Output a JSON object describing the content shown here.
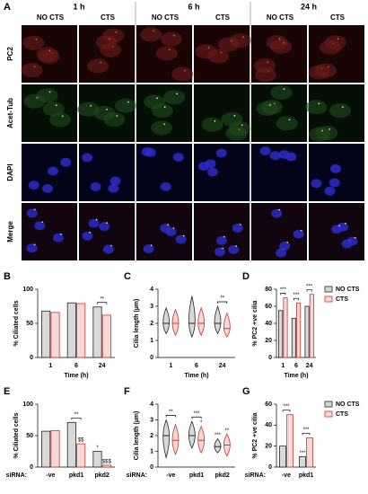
{
  "panel_a": {
    "label": "A",
    "times": [
      "1 h",
      "6 h",
      "24 h"
    ],
    "conditions": [
      "NO CTS",
      "CTS",
      "NO CTS",
      "CTS",
      "NO CTS",
      "CTS"
    ],
    "stains": [
      "PC2",
      "Acet-Tub",
      "DAPI",
      "Merge"
    ]
  },
  "chart_data": [
    {
      "type": "bar",
      "panel": "B",
      "y_label": "% Ciliated cells",
      "x_label": "Time (h)",
      "categories": [
        "1",
        "6",
        "24"
      ],
      "ylim": [
        0,
        100
      ],
      "yticks": [
        0,
        50,
        100
      ],
      "annotations": [
        null,
        null,
        "**"
      ],
      "series": [
        {
          "name": "NO CTS",
          "color": "#222222",
          "fill": "#d9d9d9",
          "values": [
            68,
            80,
            74
          ]
        },
        {
          "name": "CTS",
          "color": "#c0392b",
          "fill": "#f8d7d7",
          "values": [
            66,
            79,
            62
          ]
        }
      ]
    },
    {
      "type": "violin",
      "panel": "C",
      "y_label": "Cilia length (µm)",
      "x_label": "Time (h)",
      "categories": [
        "1",
        "6",
        "24"
      ],
      "ylim": [
        0,
        4
      ],
      "yticks": [
        0,
        1,
        2,
        3,
        4
      ],
      "annotations": [
        null,
        null,
        "**"
      ],
      "series": [
        {
          "name": "NO CTS",
          "color": "#222222",
          "fill": "#d9d9d9",
          "values": [
            2.0,
            2.0,
            2.0
          ],
          "min": [
            1.4,
            1.2,
            1.4
          ],
          "max": [
            2.9,
            3.6,
            3.0
          ]
        },
        {
          "name": "CTS",
          "color": "#c0392b",
          "fill": "#f8d7d7",
          "values": [
            2.0,
            2.0,
            1.7
          ],
          "min": [
            1.3,
            1.3,
            1.2
          ],
          "max": [
            2.8,
            2.9,
            2.6
          ]
        }
      ]
    },
    {
      "type": "bar",
      "panel": "D",
      "y_label": "% PC2 +ve cilia",
      "x_label": "Time (h)",
      "categories": [
        "1",
        "6",
        "24"
      ],
      "ylim": [
        0,
        80
      ],
      "yticks": [
        0,
        20,
        40,
        60,
        80
      ],
      "annotations": [
        "***",
        "***",
        "***"
      ],
      "legend": "right",
      "series": [
        {
          "name": "NO CTS",
          "color": "#222222",
          "fill": "#d9d9d9",
          "values": [
            55,
            46,
            60
          ]
        },
        {
          "name": "CTS",
          "color": "#c0392b",
          "fill": "#f8d7d7",
          "values": [
            70,
            64,
            74
          ]
        }
      ]
    },
    {
      "type": "bar",
      "panel": "E",
      "y_label": "% Ciliated cells",
      "x_prefix": "siRNA:",
      "categories": [
        "-ve",
        "pkd1",
        "pkd2"
      ],
      "ylim": [
        0,
        100
      ],
      "yticks": [
        0,
        50,
        100
      ],
      "annotations": [
        null,
        "**",
        null
      ],
      "series": [
        {
          "name": "NO CTS",
          "color": "#222222",
          "fill": "#d9d9d9",
          "values": [
            57,
            71,
            25
          ],
          "annotations": [
            null,
            null,
            "*"
          ]
        },
        {
          "name": "CTS",
          "color": "#c0392b",
          "fill": "#f8d7d7",
          "values": [
            58,
            37,
            3
          ],
          "annotations": [
            null,
            "$$",
            "$$$"
          ]
        }
      ]
    },
    {
      "type": "violin",
      "panel": "F",
      "y_label": "Cilia length (µm)",
      "x_prefix": "siRNA:",
      "categories": [
        "-ve",
        "pkd1",
        "pkd2"
      ],
      "ylim": [
        0,
        4
      ],
      "yticks": [
        0,
        1,
        2,
        3,
        4
      ],
      "annotations": [
        "**",
        "***",
        null
      ],
      "series": [
        {
          "name": "NO CTS",
          "color": "#222222",
          "fill": "#d9d9d9",
          "values": [
            2.0,
            2.0,
            1.3
          ],
          "min": [
            0.6,
            1.2,
            0.9
          ],
          "max": [
            3.0,
            2.9,
            1.8
          ],
          "annotations": [
            null,
            null,
            "***"
          ]
        },
        {
          "name": "CTS",
          "color": "#c0392b",
          "fill": "#f8d7d7",
          "values": [
            1.7,
            1.7,
            1.4
          ],
          "min": [
            0.8,
            0.9,
            0.7
          ],
          "max": [
            2.7,
            2.6,
            2.1
          ],
          "annotations": [
            null,
            "*",
            "**"
          ]
        }
      ]
    },
    {
      "type": "bar",
      "panel": "G",
      "y_label": "% PC2 +ve cilia",
      "x_prefix": "siRNA:",
      "categories": [
        "-ve",
        "pkd1"
      ],
      "ylim": [
        0,
        60
      ],
      "yticks": [
        0,
        20,
        40,
        60
      ],
      "annotations": [
        "***",
        "***"
      ],
      "legend": "right",
      "series": [
        {
          "name": "NO CTS",
          "color": "#222222",
          "fill": "#d9d9d9",
          "values": [
            20,
            10
          ],
          "annotations": [
            null,
            "***"
          ]
        },
        {
          "name": "CTS",
          "color": "#c0392b",
          "fill": "#f8d7d7",
          "values": [
            50,
            28
          ]
        }
      ]
    }
  ]
}
